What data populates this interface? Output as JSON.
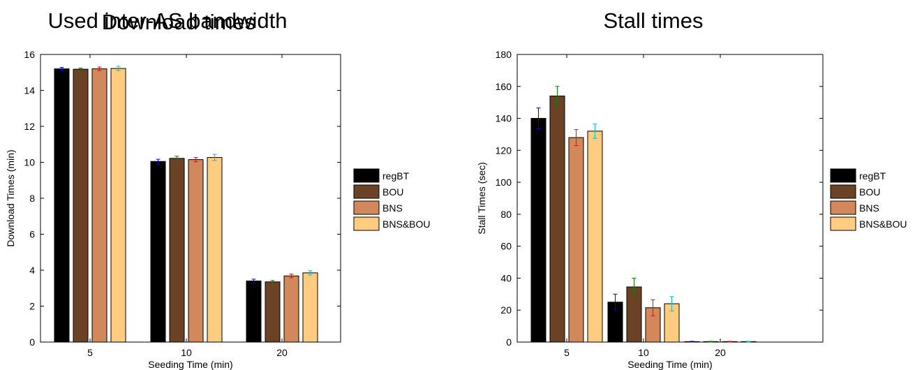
{
  "chart_data": [
    {
      "type": "bar",
      "title": "Download times",
      "title_overlap": "Used inter-AS bandwidth",
      "xlabel": "Seeding Time (min)",
      "ylabel": "Download Times (min)",
      "categories": [
        "5",
        "10",
        "20"
      ],
      "ylim": [
        0,
        16
      ],
      "yticks": [
        "0",
        "2",
        "4",
        "6",
        "8",
        "10",
        "12",
        "14",
        "16"
      ],
      "series": [
        {
          "name": "regBT",
          "values": [
            15.2,
            10.05,
            3.4
          ],
          "errors": [
            0.08,
            0.12,
            0.1
          ],
          "color": "#000000",
          "error_color": "#0000cc"
        },
        {
          "name": "BOU",
          "values": [
            15.18,
            10.22,
            3.35
          ],
          "errors": [
            0.06,
            0.12,
            0.08
          ],
          "color": "#6b4226",
          "error_color": "#008000"
        },
        {
          "name": "BNS",
          "values": [
            15.2,
            10.15,
            3.68
          ],
          "errors": [
            0.1,
            0.12,
            0.1
          ],
          "color": "#d2885a",
          "error_color": "#ff0000"
        },
        {
          "name": "BNS&BOU",
          "values": [
            15.22,
            10.27,
            3.85
          ],
          "errors": [
            0.12,
            0.17,
            0.12
          ],
          "color": "#ffcc80",
          "error_color": "#00bfbf"
        }
      ]
    },
    {
      "type": "bar",
      "title": "Stall times",
      "xlabel": "Seeding Time (min)",
      "ylabel": "Stall Times (sec)",
      "categories": [
        "5",
        "10",
        "20"
      ],
      "ylim": [
        0,
        180
      ],
      "yticks": [
        "0",
        "20",
        "40",
        "60",
        "80",
        "100",
        "120",
        "140",
        "160",
        "180"
      ],
      "series": [
        {
          "name": "regBT",
          "values": [
            140,
            25,
            0.3
          ],
          "errors": [
            6.5,
            5,
            0.2
          ],
          "color": "#000000",
          "error_color": "#0000cc"
        },
        {
          "name": "BOU",
          "values": [
            154,
            34.5,
            0.3
          ],
          "errors": [
            6,
            5.5,
            0.2
          ],
          "color": "#6b4226",
          "error_color": "#008000"
        },
        {
          "name": "BNS",
          "values": [
            128,
            21.5,
            0.3
          ],
          "errors": [
            5,
            5,
            0.2
          ],
          "color": "#d2885a",
          "error_color": "#ff0000"
        },
        {
          "name": "BNS&BOU",
          "values": [
            132,
            24,
            0.3
          ],
          "errors": [
            4.5,
            4.5,
            0.2
          ],
          "color": "#ffcc80",
          "error_color": "#00bfbf"
        }
      ]
    }
  ]
}
